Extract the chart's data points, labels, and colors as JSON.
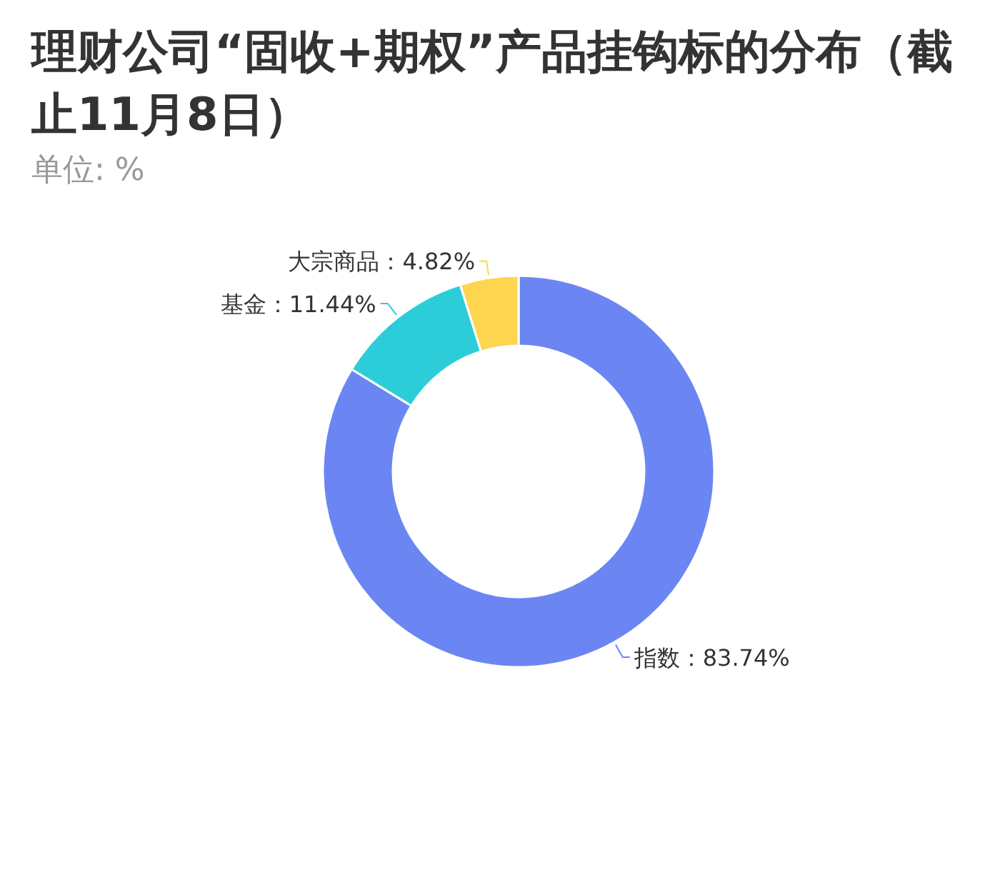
{
  "chart_data": {
    "type": "donut",
    "title": "理财公司“固收+期权”产品挂钩标的分布（截止11月8日）",
    "subtitle": "单位: %",
    "categories": [
      "指数",
      "基金",
      "大宗商品"
    ],
    "values": [
      83.74,
      11.44,
      4.82
    ],
    "value_labels": [
      "83.74%",
      "11.44%",
      "4.82%"
    ],
    "colors": [
      "#6b86f2",
      "#2ccdd9",
      "#fdd54e"
    ]
  }
}
